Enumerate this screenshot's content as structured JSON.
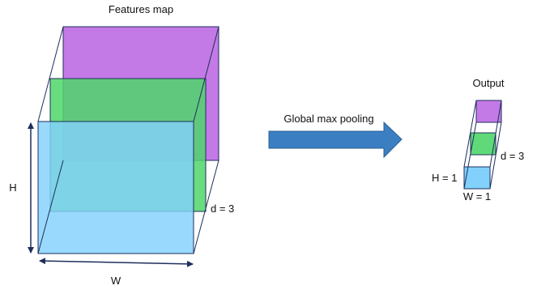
{
  "features": {
    "title": "Features map",
    "height_label": "H",
    "width_label": "W",
    "depth_label": "d = 3"
  },
  "operation": {
    "label": "Global max pooling"
  },
  "output": {
    "title": "Output",
    "height_label": "H = 1",
    "width_label": "W = 1",
    "depth_label": "d = 3"
  },
  "colors": {
    "purple": "#c37ae6",
    "green": "#4fd66a",
    "blue": "#82d1fc",
    "arrow": "#3b7fc2",
    "edge": "#1f2f5c"
  }
}
